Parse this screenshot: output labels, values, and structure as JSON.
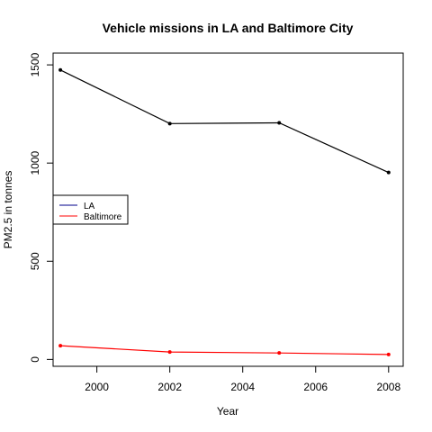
{
  "chart_data": {
    "type": "line",
    "title": "Vehicle missions in LA and Baltimore City",
    "xlabel": "Year",
    "ylabel": "PM2.5 in tonnes",
    "x": [
      1999,
      2002,
      2005,
      2008
    ],
    "xlim": [
      1998.8,
      2008.4
    ],
    "ylim": [
      -35,
      1560
    ],
    "x_ticks": [
      2000,
      2002,
      2004,
      2006,
      2008
    ],
    "y_ticks": [
      0,
      500,
      1000,
      1500
    ],
    "grid": false,
    "legend_position": "left",
    "series": [
      {
        "name": "LA",
        "values": [
          1474,
          1201,
          1205,
          952
        ],
        "color": "#000000",
        "legend_color": "#00008b"
      },
      {
        "name": "Baltimore",
        "values": [
          70,
          38,
          33,
          25
        ],
        "color": "#ff0000",
        "legend_color": "#ff0000"
      }
    ]
  }
}
